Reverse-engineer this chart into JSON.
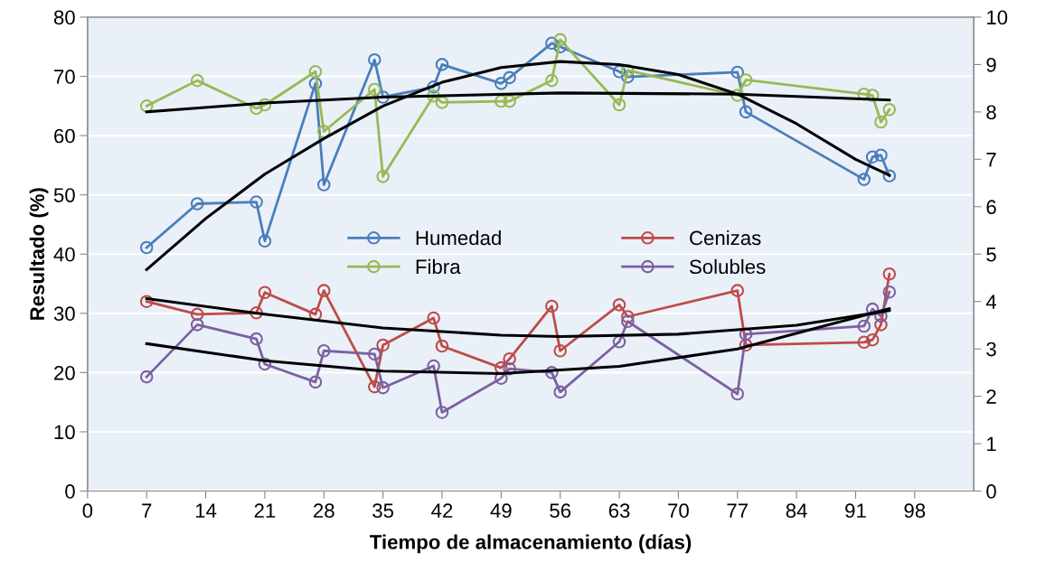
{
  "chart_data": {
    "type": "line",
    "xlabel": "Tiempo de almacenamiento (días)",
    "ylabel": "Resultado (%)",
    "xlim": [
      0,
      105
    ],
    "xticks": [
      0,
      7,
      14,
      21,
      28,
      35,
      42,
      49,
      56,
      63,
      70,
      77,
      84,
      91,
      98
    ],
    "ylim": [
      0,
      80
    ],
    "yticks": [
      0,
      10,
      20,
      30,
      40,
      50,
      60,
      70,
      80
    ],
    "y2lim": [
      0,
      10
    ],
    "y2ticks": [
      0,
      1,
      2,
      3,
      4,
      5,
      6,
      7,
      8,
      9,
      10
    ],
    "grid": "y",
    "legend": "center",
    "marker": "circle",
    "line_style": "solid",
    "series": [
      {
        "name": "Humedad",
        "color": "#4a7ebb",
        "x": [
          7,
          13,
          20,
          21,
          27,
          28,
          34,
          35,
          41,
          42,
          49,
          50,
          55,
          56,
          63,
          64,
          77,
          78,
          92,
          93,
          94,
          95
        ],
        "values": [
          41.1,
          48.5,
          48.8,
          42.2,
          68.8,
          51.7,
          72.8,
          66.5,
          68.2,
          72.0,
          68.8,
          69.8,
          75.6,
          75.0,
          70.8,
          69.9,
          70.7,
          64.0,
          52.6,
          56.4,
          56.7,
          53.2
        ]
      },
      {
        "name": "Fibra",
        "color": "#98b954",
        "x": [
          7,
          13,
          20,
          21,
          27,
          28,
          34,
          35,
          41,
          42,
          49,
          50,
          55,
          56,
          63,
          64,
          77,
          78,
          92,
          93,
          94,
          95
        ],
        "values": [
          65.0,
          69.3,
          64.6,
          65.2,
          70.8,
          60.7,
          67.8,
          53.1,
          66.7,
          65.6,
          65.8,
          65.8,
          69.3,
          76.2,
          65.2,
          71.0,
          66.8,
          69.4,
          67.0,
          66.8,
          62.3,
          64.4
        ]
      },
      {
        "name": "Cenizas",
        "color": "#be4b48",
        "axis": "y2",
        "x": [
          7,
          13,
          20,
          21,
          27,
          28,
          34,
          35,
          41,
          42,
          49,
          50,
          55,
          56,
          63,
          64,
          77,
          78,
          92,
          93,
          94,
          95
        ],
        "values": [
          4.0,
          3.73,
          3.76,
          4.19,
          3.73,
          4.23,
          2.2,
          3.08,
          3.65,
          3.06,
          2.6,
          2.79,
          3.9,
          2.96,
          3.93,
          3.68,
          4.23,
          3.08,
          3.14,
          3.19,
          3.51,
          4.58
        ]
      },
      {
        "name": "Solubles",
        "color": "#7d60a0",
        "axis": "y2",
        "x": [
          7,
          13,
          20,
          21,
          27,
          28,
          34,
          35,
          41,
          42,
          49,
          50,
          55,
          56,
          63,
          64,
          77,
          78,
          92,
          93,
          94,
          95
        ],
        "values": [
          2.41,
          3.51,
          3.21,
          2.68,
          2.3,
          2.96,
          2.89,
          2.18,
          2.64,
          1.66,
          2.38,
          2.58,
          2.5,
          2.09,
          3.15,
          3.58,
          2.05,
          3.31,
          3.48,
          3.84,
          3.69,
          4.2
        ]
      },
      {
        "type": "line",
        "marker": "none",
        "color": "#000000",
        "x": [
          7,
          14,
          21,
          28,
          35,
          42,
          49,
          56,
          63,
          70,
          77,
          84,
          91,
          95
        ],
        "values": [
          37.4,
          46,
          53.5,
          59.5,
          65,
          69,
          71.5,
          72.5,
          72,
          70.3,
          67,
          62,
          56,
          53.3
        ]
      },
      {
        "type": "line",
        "marker": "none",
        "color": "#000000",
        "x": [
          7,
          21,
          35,
          56,
          77,
          95
        ],
        "values": [
          64,
          65.5,
          66.5,
          67.2,
          67,
          66
        ]
      },
      {
        "type": "line",
        "marker": "none",
        "color": "#000000",
        "axis": "y2",
        "x": [
          7,
          21,
          35,
          49,
          56,
          70,
          84,
          95
        ],
        "values": [
          4.06,
          3.73,
          3.44,
          3.29,
          3.26,
          3.31,
          3.5,
          3.81
        ]
      },
      {
        "type": "line",
        "marker": "none",
        "color": "#000000",
        "axis": "y2",
        "x": [
          7,
          21,
          35,
          49,
          63,
          77,
          95
        ],
        "values": [
          3.11,
          2.75,
          2.53,
          2.48,
          2.63,
          3.0,
          3.85
        ]
      }
    ]
  }
}
